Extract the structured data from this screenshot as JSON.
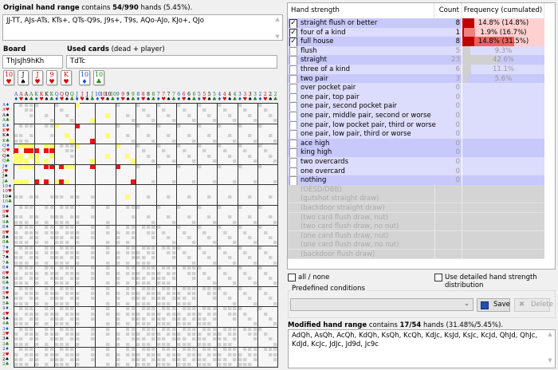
{
  "original": {
    "label_bold": "Original hand range",
    "label_rest": " contains ",
    "count": "54/990",
    "label_tail": " hands (5.45%).",
    "text": "JJ-TT, AJs-ATs, KTs+, QTs-Q9s, J9s+, T9s, AQo-AJo, KJo+, QJo"
  },
  "board": {
    "label": "Board",
    "value": "ThJsJh9hKh",
    "cards": [
      {
        "rank": "10",
        "suit": "♥",
        "color": "#d00000"
      },
      {
        "rank": "J",
        "suit": "♠",
        "color": "#000000"
      },
      {
        "rank": "J",
        "suit": "♥",
        "color": "#d00000"
      },
      {
        "rank": "9",
        "suit": "♥",
        "color": "#d00000"
      },
      {
        "rank": "K",
        "suit": "♥",
        "color": "#d00000"
      }
    ]
  },
  "used": {
    "label_bold": "Used cards",
    "label_rest": " (dead + player)",
    "value": "TdTc",
    "cards": [
      {
        "rank": "10",
        "suit": "♦",
        "color": "#1050c0"
      },
      {
        "rank": "10",
        "suit": "♣",
        "color": "#108010"
      }
    ]
  },
  "grid": {
    "ranks": [
      "A",
      "K",
      "Q",
      "J",
      "10",
      "9",
      "8",
      "7",
      "6",
      "5",
      "4",
      "3",
      "2"
    ],
    "suits": [
      {
        "sym": "♦",
        "color": "#1050c0"
      },
      {
        "sym": "♥",
        "color": "#d00000"
      },
      {
        "sym": "♠",
        "color": "#000000"
      },
      {
        "sym": "♣",
        "color": "#108010"
      }
    ],
    "highlight_in_range": "#ffff70",
    "highlight_modified": "#ee1111"
  },
  "table": {
    "headers": [
      "Hand strength",
      "Count",
      "Frequency (cumulated)"
    ],
    "rows": [
      {
        "name": "straight flush or better",
        "checked": true,
        "count": "8",
        "freq": "14.8% (14.8%)",
        "pct": 14.8,
        "cum": 14.8,
        "bg": "#c8c8fa"
      },
      {
        "name": "four of a kind",
        "checked": true,
        "count": "1",
        "freq": "1.9% (16.7%)",
        "pct": 1.9,
        "cum": 16.7,
        "bg": "#dcdcfc"
      },
      {
        "name": "full house",
        "checked": true,
        "count": "8",
        "freq": "14.8% (31.5%)",
        "pct": 14.8,
        "cum": 31.5,
        "bg": "#c8c8fa"
      },
      {
        "name": "flush",
        "checked": false,
        "count": "5",
        "freq": "9.3%",
        "pct": 9.3,
        "bg": "#dcdcfc"
      },
      {
        "name": "straight",
        "checked": false,
        "count": "23",
        "freq": "42.6%",
        "pct": 42.6,
        "bg": "#c8c8fa"
      },
      {
        "name": "three of a kind",
        "checked": false,
        "count": "6",
        "freq": "11.1%",
        "pct": 11.1,
        "bg": "#dcdcfc"
      },
      {
        "name": "two pair",
        "checked": false,
        "count": "3",
        "freq": "5.6%",
        "pct": 5.6,
        "bg": "#c8c8fa"
      },
      {
        "name": "over pocket pair",
        "checked": false,
        "count": "0",
        "bg": "#dcdcfc"
      },
      {
        "name": "one pair, top pair",
        "checked": false,
        "count": "0",
        "bg": "#dcdcfc"
      },
      {
        "name": "one pair, second pocket pair",
        "checked": false,
        "count": "0",
        "bg": "#dcdcfc"
      },
      {
        "name": "one pair, middle pair, second or worse",
        "checked": false,
        "count": "0",
        "bg": "#dcdcfc"
      },
      {
        "name": "one pair, low pocket pair, third or worse",
        "checked": false,
        "count": "0",
        "bg": "#dcdcfc"
      },
      {
        "name": "one pair, low pair, third or worse",
        "checked": false,
        "count": "0",
        "bg": "#dcdcfc"
      },
      {
        "name": "ace high",
        "checked": false,
        "count": "0",
        "bg": "#c8c8fa"
      },
      {
        "name": "king high",
        "checked": false,
        "count": "0",
        "bg": "#c8c8fa"
      },
      {
        "name": "two overcards",
        "checked": false,
        "count": "0",
        "bg": "#dcdcfc"
      },
      {
        "name": "one overcard",
        "checked": false,
        "count": "0",
        "bg": "#dcdcfc"
      },
      {
        "name": "nothing",
        "checked": false,
        "count": "0",
        "bg": "#c8c8fa"
      }
    ],
    "draws": [
      "(OESD/DBB)",
      "(gutshot straight draw)",
      "(backdoor straight draw)",
      "(two card flush draw, nut)",
      "(two card flush draw, no nut)",
      "(one card flush draw, nut)",
      "(one card flush draw, no nut)",
      "(backdoor flush draw)"
    ]
  },
  "all_none": "all / none",
  "detailed": "Use detailed hand strength distribution",
  "predefined": {
    "label": "Predefined conditions",
    "value": "",
    "save": "Save",
    "delete": "Delete"
  },
  "modified": {
    "label_bold": "Modified hand range",
    "label_rest": " contains ",
    "count": "17/54",
    "label_tail": " hands (31.48%/5.45%).",
    "text": "AdQh, AsQh, AcQh, KdQh, KsQh, KcQh, KdJc, KsJd, KsJc, KcJd, QhJd, QhJc, KdJd, KcJc, JdJc, Jd9d, Jc9c"
  }
}
